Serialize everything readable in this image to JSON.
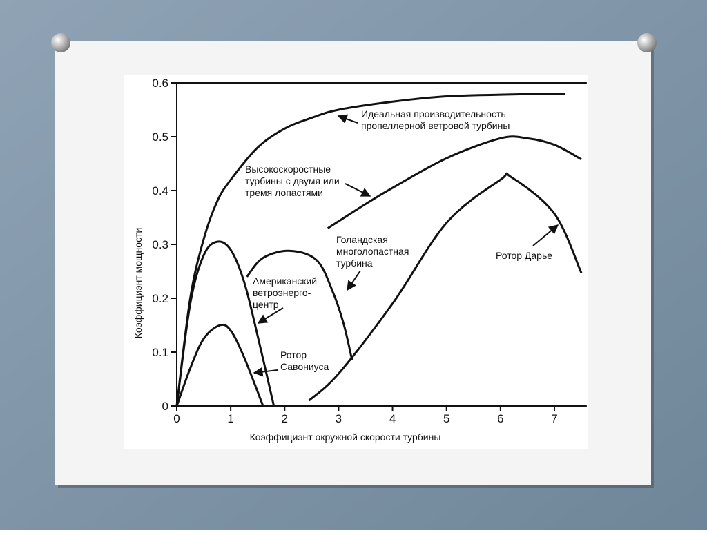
{
  "chart_data": {
    "type": "line",
    "x_label": "Коэффициэнт окружной скорости турбины",
    "y_label": "Коэффициэнт мощности",
    "xlim": [
      0,
      7.6
    ],
    "ylim": [
      0,
      0.6
    ],
    "xticks": [
      0,
      1,
      2,
      3,
      4,
      5,
      6,
      7
    ],
    "yticks": [
      0,
      0.1,
      0.2,
      0.3,
      0.4,
      0.5,
      0.6
    ],
    "color": "#111111",
    "series": [
      {
        "label": [
          "Идеальная производительность",
          "пропеллерной ветровой турбины"
        ],
        "x": [
          0,
          0.25,
          0.5,
          0.75,
          1,
          1.5,
          2,
          2.5,
          3,
          4,
          5,
          6,
          7,
          7.2
        ],
        "values": [
          0,
          0.2,
          0.31,
          0.38,
          0.42,
          0.48,
          0.515,
          0.535,
          0.55,
          0.565,
          0.575,
          0.578,
          0.58,
          0.58
        ]
      },
      {
        "label": [
          "Высокоскоростные",
          "турбины с двумя или",
          "тремя лопастями"
        ],
        "x": [
          2.8,
          3.5,
          4,
          5,
          6,
          6.5,
          7,
          7.5
        ],
        "values": [
          0.33,
          0.375,
          0.405,
          0.46,
          0.497,
          0.497,
          0.485,
          0.458
        ]
      },
      {
        "label": [
          "Ротор Дарье"
        ],
        "x": [
          2.45,
          3,
          4,
          5,
          6,
          6.2,
          7,
          7.5
        ],
        "values": [
          0.01,
          0.06,
          0.19,
          0.34,
          0.42,
          0.425,
          0.357,
          0.247
        ]
      },
      {
        "label": [
          "Голандская",
          "многолопастная",
          "турбина"
        ],
        "x": [
          1.3,
          1.6,
          2.1,
          2.6,
          2.9,
          3.1,
          3.25
        ],
        "values": [
          0.24,
          0.275,
          0.288,
          0.27,
          0.21,
          0.15,
          0.085
        ]
      },
      {
        "label": [
          "Американский",
          "ветроэнерго-",
          "центр"
        ],
        "x": [
          0,
          0.25,
          0.5,
          0.75,
          1,
          1.25,
          1.5,
          1.8
        ],
        "values": [
          0,
          0.19,
          0.28,
          0.305,
          0.29,
          0.23,
          0.13,
          0
        ]
      },
      {
        "label": [
          "Ротор",
          "Савониуса"
        ],
        "x": [
          0,
          0.25,
          0.5,
          0.8,
          1,
          1.25,
          1.6
        ],
        "values": [
          0,
          0.07,
          0.125,
          0.15,
          0.14,
          0.09,
          0
        ]
      }
    ]
  }
}
